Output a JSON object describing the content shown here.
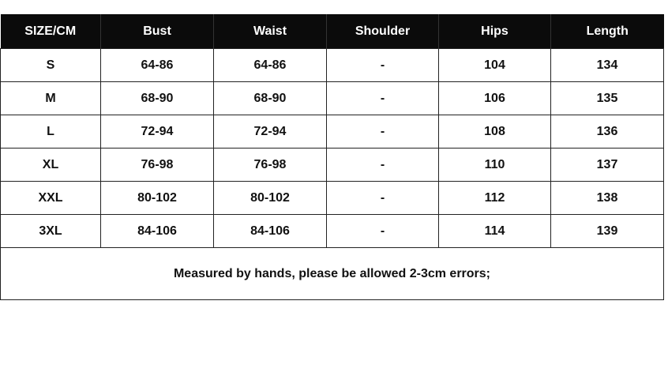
{
  "table": {
    "headers": [
      "SIZE/CM",
      "Bust",
      "Waist",
      "Shoulder",
      "Hips",
      "Length"
    ],
    "rows": [
      [
        "S",
        "64-86",
        "64-86",
        "-",
        "104",
        "134"
      ],
      [
        "M",
        "68-90",
        "68-90",
        "-",
        "106",
        "135"
      ],
      [
        "L",
        "72-94",
        "72-94",
        "-",
        "108",
        "136"
      ],
      [
        "XL",
        "76-98",
        "76-98",
        "-",
        "110",
        "137"
      ],
      [
        "XXL",
        "80-102",
        "80-102",
        "-",
        "112",
        "138"
      ],
      [
        "3XL",
        "84-106",
        "84-106",
        "-",
        "114",
        "139"
      ]
    ],
    "note": "Measured by hands, please be allowed 2-3cm errors;"
  }
}
